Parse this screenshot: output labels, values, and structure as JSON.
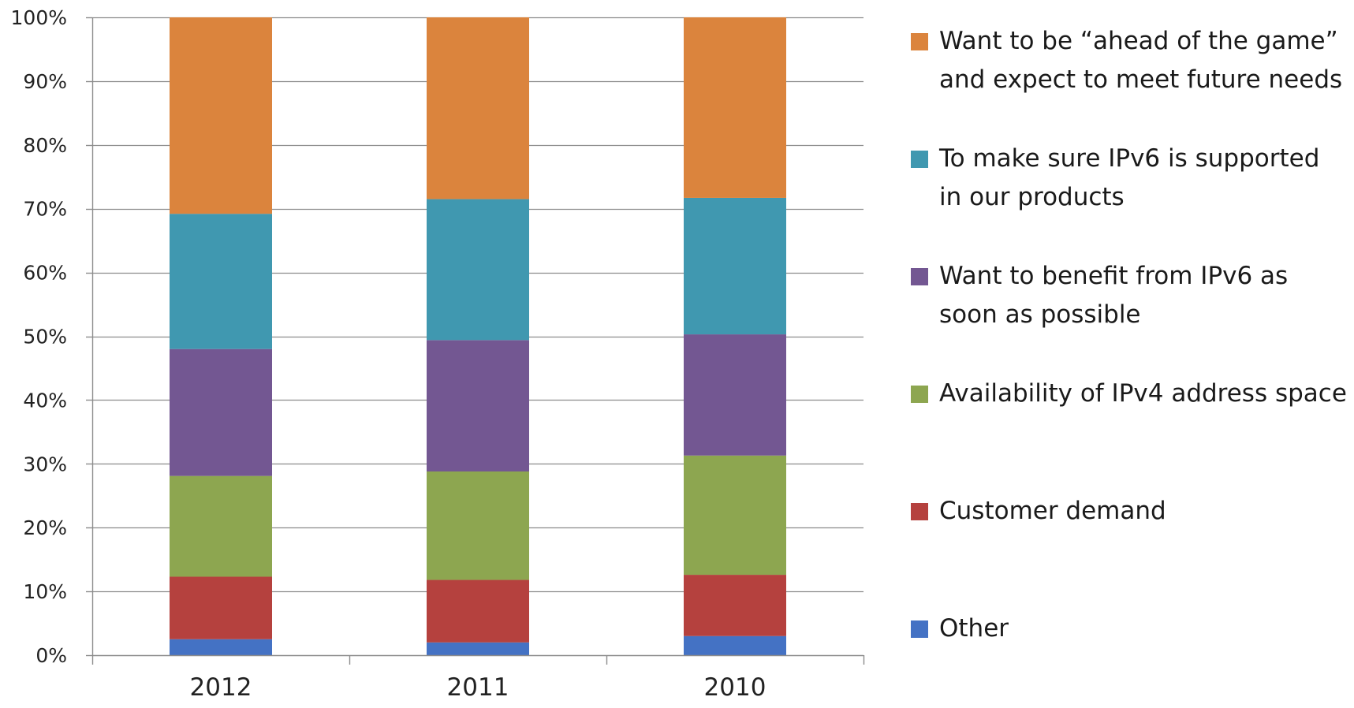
{
  "chart_data": {
    "type": "bar",
    "stacked": true,
    "normalized": true,
    "categories": [
      "2012",
      "2011",
      "2010"
    ],
    "ylim": [
      0,
      100
    ],
    "yticks": [
      "0%",
      "10%",
      "20%",
      "30%",
      "40%",
      "50%",
      "60%",
      "70%",
      "80%",
      "90%",
      "100%"
    ],
    "grid": true,
    "legend_position": "right",
    "series": [
      {
        "name": "Other",
        "color": "#4472C4",
        "values": [
          2.5,
          2.0,
          3.0
        ]
      },
      {
        "name": "Customer demand",
        "color": "#B5413E",
        "values": [
          9.8,
          9.8,
          9.6
        ]
      },
      {
        "name": "Availability of IPv4 address space",
        "color": "#8DA650",
        "values": [
          15.8,
          17.0,
          18.7
        ]
      },
      {
        "name": "Want to benefit from IPv6 as soon as possible",
        "color": "#735792",
        "values": [
          19.9,
          20.6,
          19.0
        ]
      },
      {
        "name": "To make sure IPv6 is supported in our products",
        "color": "#4098B0",
        "values": [
          21.2,
          22.1,
          21.4
        ]
      },
      {
        "name": "Want to be “ahead of the game” and expect to meet future needs",
        "color": "#DB843D",
        "values": [
          30.8,
          28.5,
          28.3
        ]
      }
    ]
  }
}
